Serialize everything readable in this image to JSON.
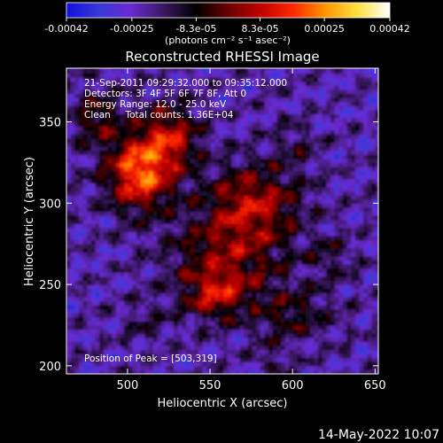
{
  "chart_data": {
    "type": "heatmap",
    "title": "Reconstructed RHESSI Image",
    "xlabel": "Heliocentric X (arcsec)",
    "ylabel": "Heliocentric Y (arcsec)",
    "xlim": [
      463,
      652
    ],
    "ylim": [
      195,
      383
    ],
    "x_ticks": [
      500,
      550,
      600,
      650
    ],
    "y_ticks": [
      200,
      250,
      300,
      350
    ],
    "colorbar": {
      "range": [
        -0.00042,
        0.00042
      ],
      "tick_values": [
        -0.00042,
        -0.00025,
        -8.3e-05,
        8.3e-05,
        0.00025,
        0.00042
      ],
      "tick_labels": [
        "-0.00042",
        "-0.00025",
        "-8.3e-05",
        "8.3e-05",
        "0.00025",
        "0.00042"
      ],
      "unit_label": "(photons cm⁻² s⁻¹ asec⁻²)",
      "colors": [
        "#1010e0",
        "#3838d8",
        "#6a2ad0",
        "#3a1860",
        "#000000",
        "#6a0000",
        "#c00000",
        "#ff2800",
        "#ff9400",
        "#ffe040",
        "#ffffff"
      ]
    },
    "annotations": [
      "21-Sep-2011 09:29:32.000 to 09:35:12.000",
      "Detectors: 3F 4F 5F 6F 7F 8F, Att 0",
      "Energy Range: 12.0 - 25.0 keV",
      "Clean     Total counts: 1.36E+04",
      "Position of Peak = [503,319]"
    ],
    "peak": [
      503,
      319
    ],
    "sources": [
      {
        "x": 506,
        "y": 318,
        "sx": 14,
        "sy": 16,
        "amp": 0.00042
      },
      {
        "x": 525,
        "y": 340,
        "sx": 12,
        "sy": 14,
        "amp": 0.00026
      },
      {
        "x": 480,
        "y": 352,
        "sx": 10,
        "sy": 12,
        "amp": 0.00018
      },
      {
        "x": 575,
        "y": 300,
        "sx": 20,
        "sy": 16,
        "amp": 0.00025
      },
      {
        "x": 560,
        "y": 265,
        "sx": 24,
        "sy": 20,
        "amp": 0.00022
      },
      {
        "x": 552,
        "y": 242,
        "sx": 12,
        "sy": 10,
        "amp": 0.00022
      },
      {
        "x": 600,
        "y": 230,
        "sx": 16,
        "sy": 12,
        "amp": 0.00014
      },
      {
        "x": 622,
        "y": 265,
        "sx": 10,
        "sy": 10,
        "amp": 9e-05
      },
      {
        "x": 600,
        "y": 335,
        "sx": 10,
        "sy": 10,
        "amp": 8e-05
      },
      {
        "x": 510,
        "y": 226,
        "sx": 10,
        "sy": 8,
        "amp": 8e-05
      },
      {
        "x": 585,
        "y": 202,
        "sx": 8,
        "sy": 6,
        "amp": 8e-05
      }
    ]
  },
  "timestamp": "14-May-2022 10:07"
}
